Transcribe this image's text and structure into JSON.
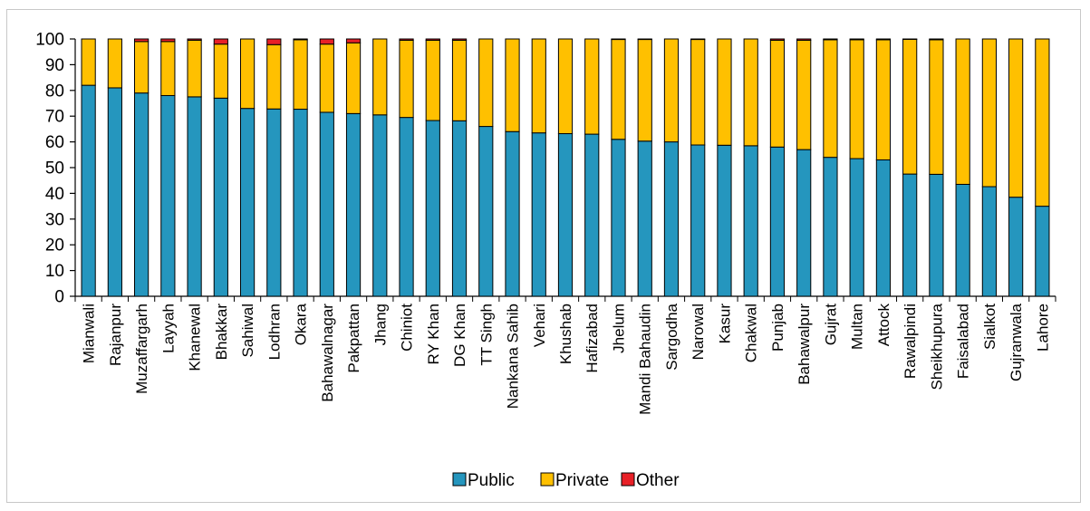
{
  "chart_data": {
    "type": "bar",
    "stacked": true,
    "title": "",
    "xlabel": "",
    "ylabel": "",
    "ylim": [
      0,
      100
    ],
    "yticks": [
      0,
      10,
      20,
      30,
      40,
      50,
      60,
      70,
      80,
      90,
      100
    ],
    "grid": false,
    "legend_position": "bottom",
    "categories": [
      "Mianwali",
      "Rajanpur",
      "Muzaffargarh",
      "Layyah",
      "Khanewal",
      "Bhakkar",
      "Sahiwal",
      "Lodhran",
      "Okara",
      "Bahawalnagar",
      "Pakpattan",
      "Jhang",
      "Chiniot",
      "RY Khan",
      "DG Khan",
      "TT Singh",
      "Nankana Sahib",
      "Vehari",
      "Khushab",
      "Hafizabad",
      "Jhelum",
      "Mandi Bahaudin",
      "Sargodha",
      "Narowal",
      "Kasur",
      "Chakwal",
      "Punjab",
      "Bahawalpur",
      "Gujrat",
      "Multan",
      "Attock",
      "Rawalpindi",
      "Sheikhupura",
      "Faisalabad",
      "Sialkot",
      "Gujranwala",
      "Lahore"
    ],
    "series": [
      {
        "name": "Public",
        "color": "#2596be",
        "values": [
          82,
          81,
          79,
          78,
          77.5,
          77,
          73,
          72.8,
          72.7,
          71.5,
          71,
          70.5,
          69.5,
          68.3,
          68.2,
          66,
          64,
          63.5,
          63.2,
          63,
          61,
          60.3,
          60,
          58.8,
          58.7,
          58.5,
          58,
          57,
          54,
          53.5,
          53,
          47.5,
          47.4,
          43.5,
          42.6,
          38.5,
          35
        ]
      },
      {
        "name": "Private",
        "color": "#ffc000",
        "values": [
          18,
          19,
          20,
          21,
          22,
          21,
          27,
          25,
          27,
          26.5,
          27.5,
          29.5,
          30,
          31.2,
          31.3,
          34,
          36,
          36.5,
          36.8,
          37,
          38.8,
          39.5,
          40,
          41,
          41.3,
          41.5,
          41.5,
          42.5,
          45.7,
          46.2,
          46.7,
          52.4,
          52.3,
          56.5,
          57.4,
          61.5,
          65
        ]
      },
      {
        "name": "Other",
        "color": "#e82027",
        "values": [
          0,
          0,
          1,
          1,
          0.5,
          2,
          0,
          2.2,
          0.3,
          2,
          1.5,
          0,
          0.5,
          0.5,
          0.5,
          0,
          0,
          0,
          0,
          0,
          0.2,
          0.2,
          0,
          0.2,
          0,
          0,
          0.5,
          0.5,
          0.3,
          0.3,
          0.3,
          0.1,
          0.3,
          0,
          0,
          0,
          0
        ]
      }
    ]
  }
}
